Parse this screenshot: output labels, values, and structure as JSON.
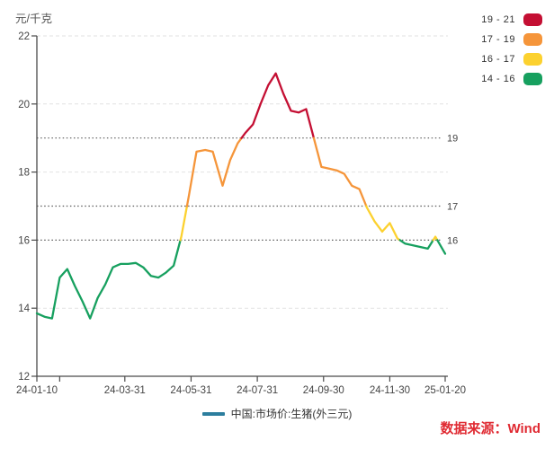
{
  "legend": {
    "items": [
      {
        "label": "19 - 21",
        "color": "#C40F33"
      },
      {
        "label": "17 - 19",
        "color": "#F5953A"
      },
      {
        "label": "16 - 17",
        "color": "#FCD12F"
      },
      {
        "label": "14 - 16",
        "color": "#17A05F"
      }
    ]
  },
  "series_legend": {
    "label": "中国:市场价:生猪(外三元)",
    "marker_color": "#2C7E9E"
  },
  "source": {
    "text": "数据来源：Wind",
    "color": "#E02B33"
  },
  "colors": {
    "axis": "#4A4A4A",
    "text": "#444444",
    "grid_faint": "#E2E2E2",
    "grid_dark": "#5A5A5A",
    "background": "#FFFFFF"
  },
  "chart_data": {
    "type": "line",
    "title": "",
    "ylabel": "元/千克",
    "ylim": [
      12,
      22
    ],
    "yticks": [
      12,
      14,
      16,
      18,
      20,
      22
    ],
    "gridline_values": [
      14,
      18,
      20,
      22
    ],
    "x_range": [
      "2024-01-10",
      "2025-01-20"
    ],
    "xticks": [
      {
        "label": "24-01-10",
        "date": "2024-01-10"
      },
      {
        "label": "24-03-31",
        "date": "2024-03-31"
      },
      {
        "label": "24-05-31",
        "date": "2024-05-31"
      },
      {
        "label": "24-07-31",
        "date": "2024-07-31"
      },
      {
        "label": "24-09-30",
        "date": "2024-09-30"
      },
      {
        "label": "24-11-30",
        "date": "2024-11-30"
      },
      {
        "label": "25-01-20",
        "date": "2025-01-20"
      }
    ],
    "extra_xticks": [
      "2024-01-31"
    ],
    "threshold_lines": [
      {
        "value": 19,
        "label": "19"
      },
      {
        "value": 17,
        "label": "17"
      },
      {
        "value": 16,
        "label": "16"
      }
    ],
    "threshold_values": [
      16,
      17,
      19
    ],
    "bands": [
      {
        "min": 19,
        "max": 21,
        "color": "#C40F33"
      },
      {
        "min": 17,
        "max": 19,
        "color": "#F5953A"
      },
      {
        "min": 16,
        "max": 17,
        "color": "#FCD12F"
      },
      {
        "min": 14,
        "max": 16,
        "color": "#17A05F"
      }
    ],
    "legend_position": "top-right",
    "series": [
      {
        "name": "中国:市场价:生猪(外三元)",
        "color_mode": "banded",
        "points": [
          [
            "2024-01-10",
            13.85
          ],
          [
            "2024-01-17",
            13.75
          ],
          [
            "2024-01-24",
            13.7
          ],
          [
            "2024-01-31",
            14.9
          ],
          [
            "2024-02-07",
            15.15
          ],
          [
            "2024-02-14",
            14.65
          ],
          [
            "2024-02-21",
            14.2
          ],
          [
            "2024-02-28",
            13.7
          ],
          [
            "2024-03-06",
            14.3
          ],
          [
            "2024-03-13",
            14.7
          ],
          [
            "2024-03-20",
            15.2
          ],
          [
            "2024-03-27",
            15.3
          ],
          [
            "2024-04-03",
            15.3
          ],
          [
            "2024-04-10",
            15.33
          ],
          [
            "2024-04-17",
            15.2
          ],
          [
            "2024-04-24",
            14.95
          ],
          [
            "2024-05-01",
            14.9
          ],
          [
            "2024-05-08",
            15.05
          ],
          [
            "2024-05-15",
            15.25
          ],
          [
            "2024-05-22",
            16.1
          ],
          [
            "2024-05-29",
            17.3
          ],
          [
            "2024-06-05",
            18.6
          ],
          [
            "2024-06-13",
            18.65
          ],
          [
            "2024-06-20",
            18.6
          ],
          [
            "2024-06-29",
            17.6
          ],
          [
            "2024-07-06",
            18.35
          ],
          [
            "2024-07-13",
            18.85
          ],
          [
            "2024-07-20",
            19.15
          ],
          [
            "2024-07-27",
            19.4
          ],
          [
            "2024-08-03",
            20.0
          ],
          [
            "2024-08-10",
            20.55
          ],
          [
            "2024-08-17",
            20.9
          ],
          [
            "2024-08-24",
            20.3
          ],
          [
            "2024-08-31",
            19.8
          ],
          [
            "2024-09-07",
            19.75
          ],
          [
            "2024-09-14",
            19.85
          ],
          [
            "2024-09-21",
            19.0
          ],
          [
            "2024-09-28",
            18.15
          ],
          [
            "2024-10-05",
            18.1
          ],
          [
            "2024-10-12",
            18.05
          ],
          [
            "2024-10-19",
            17.95
          ],
          [
            "2024-10-26",
            17.6
          ],
          [
            "2024-11-02",
            17.5
          ],
          [
            "2024-11-09",
            16.95
          ],
          [
            "2024-11-16",
            16.55
          ],
          [
            "2024-11-23",
            16.25
          ],
          [
            "2024-11-30",
            16.5
          ],
          [
            "2024-12-07",
            16.05
          ],
          [
            "2024-12-14",
            15.9
          ],
          [
            "2024-12-21",
            15.85
          ],
          [
            "2024-12-28",
            15.8
          ],
          [
            "2025-01-04",
            15.75
          ],
          [
            "2025-01-11",
            16.1
          ],
          [
            "2025-01-20",
            15.6
          ]
        ]
      }
    ]
  }
}
